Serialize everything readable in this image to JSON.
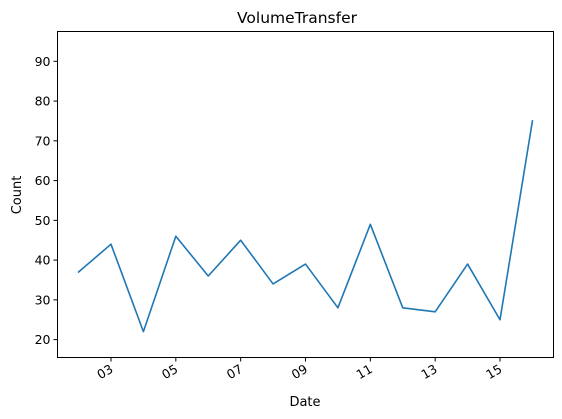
{
  "chart_data": {
    "type": "line",
    "title": "VolumeTransfer",
    "xlabel": "Date",
    "ylabel": "Count",
    "x": [
      "02",
      "03",
      "04",
      "05",
      "06",
      "07",
      "08",
      "09",
      "10",
      "11",
      "12",
      "13",
      "14",
      "15",
      "16"
    ],
    "xticks": [
      "03",
      "05",
      "07",
      "09",
      "11",
      "13",
      "15"
    ],
    "series": [
      {
        "values": [
          37,
          44,
          22,
          46,
          36,
          45,
          34,
          39,
          28,
          49,
          28,
          27,
          39,
          25,
          75
        ],
        "color": "#1f77b4"
      }
    ],
    "yticks": [
      20,
      30,
      40,
      50,
      60,
      70,
      80,
      90
    ],
    "ylim": [
      15.5,
      97.5
    ],
    "xlim": [
      1.35,
      16.65
    ],
    "grid": false,
    "legend": "none"
  }
}
